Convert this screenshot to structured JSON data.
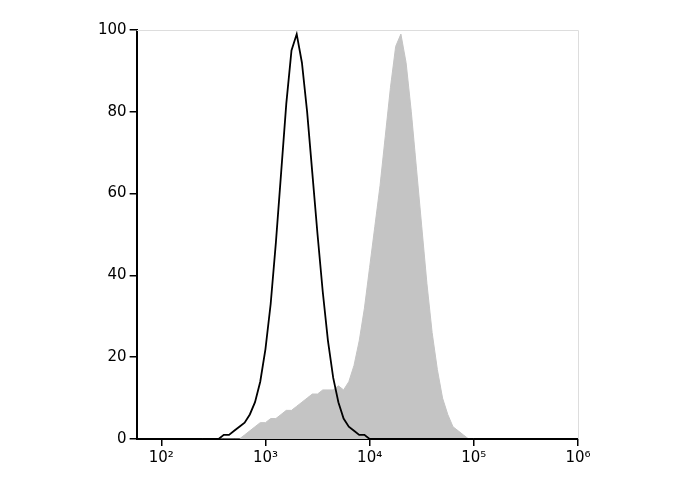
{
  "chart_data": {
    "type": "line",
    "log": "x",
    "grid": false,
    "xlim": [
      58,
      1000000
    ],
    "xticks": [
      {
        "value": 100,
        "label": "10²"
      },
      {
        "value": 1000,
        "label": "10³"
      },
      {
        "value": 10000,
        "label": "10⁴"
      },
      {
        "value": 100000,
        "label": "10⁵"
      },
      {
        "value": 1000000,
        "label": "10⁶"
      }
    ],
    "ylim": [
      0,
      100
    ],
    "yticks": [
      0,
      20,
      40,
      60,
      80,
      100
    ],
    "x": [
      251,
      282,
      316,
      355,
      398,
      447,
      501,
      562,
      631,
      708,
      794,
      891,
      1000,
      1122,
      1259,
      1413,
      1585,
      1778,
      1995,
      2239,
      2512,
      2818,
      3162,
      3548,
      3981,
      4467,
      5012,
      5623,
      6310,
      7079,
      7943,
      8913,
      10000,
      11220,
      12589,
      14125,
      15849,
      17783,
      19953,
      22387,
      25119,
      28184,
      31623,
      35481,
      39811,
      44668,
      50119,
      56234,
      63096,
      70795,
      79433,
      89125,
      100000
    ],
    "series": [
      {
        "type": "area",
        "color": "#c4c4c4",
        "values": [
          0,
          0,
          0,
          0,
          0,
          0,
          0,
          0,
          1,
          2,
          3,
          4,
          4,
          5,
          5,
          6,
          7,
          7,
          8,
          9,
          10,
          11,
          11,
          12,
          12,
          12,
          13,
          12,
          14,
          18,
          24,
          32,
          42,
          52,
          62,
          74,
          86,
          96,
          99,
          92,
          80,
          66,
          52,
          38,
          26,
          17,
          10,
          6,
          3,
          2,
          1,
          0,
          0
        ]
      },
      {
        "type": "line",
        "color": "#000000",
        "values": [
          0,
          0,
          0,
          0,
          1,
          1,
          2,
          3,
          4,
          6,
          9,
          14,
          22,
          33,
          48,
          65,
          82,
          95,
          99,
          92,
          80,
          65,
          50,
          36,
          24,
          15,
          9,
          5,
          3,
          2,
          1,
          1,
          0,
          0,
          0,
          0,
          0,
          0,
          0,
          0,
          0,
          0,
          0,
          0,
          0,
          0,
          0,
          0,
          0,
          0,
          0,
          0,
          0
        ]
      }
    ]
  }
}
